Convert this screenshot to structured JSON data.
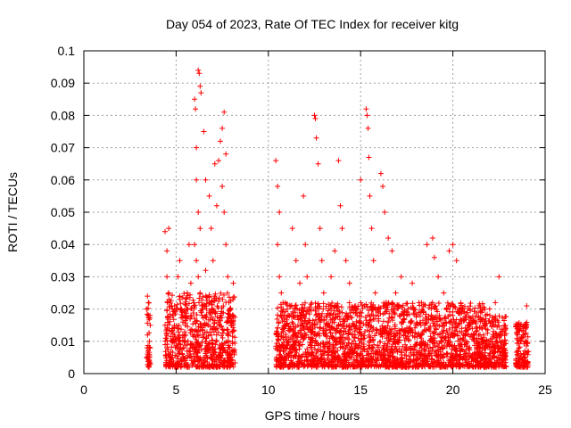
{
  "chart_data": {
    "type": "scatter",
    "title": "Day 054 of 2023, Rate Of TEC Index for receiver kitg",
    "xlabel": "GPS time / hours",
    "ylabel": "ROTI / TECUs",
    "xlim": [
      0,
      25
    ],
    "ylim": [
      0,
      0.1
    ],
    "x_ticks": [
      0,
      5,
      10,
      15,
      20,
      25
    ],
    "x_tick_labels": [
      "0",
      "5",
      "10",
      "15",
      "20",
      "25"
    ],
    "y_ticks": [
      0,
      0.01,
      0.02,
      0.03,
      0.04,
      0.05,
      0.06,
      0.07,
      0.08,
      0.09,
      0.1
    ],
    "y_tick_labels": [
      "0",
      "0.01",
      "0.02",
      "0.03",
      "0.04",
      "0.05",
      "0.06",
      "0.07",
      "0.08",
      "0.09",
      "0.1"
    ],
    "grid": true,
    "marker": "+",
    "color": "#ff0000",
    "series": [
      {
        "name": "ROTI",
        "points": [
          [
            3.4,
            0.005
          ],
          [
            3.45,
            0.012
          ],
          [
            3.5,
            0.018
          ],
          [
            3.5,
            0.022
          ],
          [
            3.55,
            0.008
          ],
          [
            3.6,
            0.015
          ],
          [
            3.6,
            0.003
          ],
          [
            3.45,
            0.024
          ],
          [
            3.55,
            0.01
          ],
          [
            3.4,
            0.02
          ],
          [
            4.4,
            0.044
          ],
          [
            4.6,
            0.045
          ],
          [
            4.5,
            0.038
          ],
          [
            4.5,
            0.03
          ],
          [
            4.6,
            0.025
          ],
          [
            4.4,
            0.015
          ],
          [
            4.5,
            0.008
          ],
          [
            4.7,
            0.005
          ],
          [
            4.8,
            0.02
          ],
          [
            4.9,
            0.012
          ],
          [
            5.0,
            0.01
          ],
          [
            5.1,
            0.03
          ],
          [
            5.2,
            0.035
          ],
          [
            5.3,
            0.02
          ],
          [
            5.4,
            0.008
          ],
          [
            5.5,
            0.015
          ],
          [
            5.6,
            0.025
          ],
          [
            5.7,
            0.04
          ],
          [
            5.8,
            0.018
          ],
          [
            5.9,
            0.012
          ],
          [
            6.0,
            0.085
          ],
          [
            6.05,
            0.082
          ],
          [
            6.1,
            0.07
          ],
          [
            6.2,
            0.094
          ],
          [
            6.25,
            0.093
          ],
          [
            6.3,
            0.089
          ],
          [
            6.35,
            0.087
          ],
          [
            6.1,
            0.06
          ],
          [
            6.2,
            0.05
          ],
          [
            6.3,
            0.045
          ],
          [
            6.0,
            0.04
          ],
          [
            6.1,
            0.035
          ],
          [
            6.2,
            0.03
          ],
          [
            6.3,
            0.025
          ],
          [
            6.4,
            0.02
          ],
          [
            6.5,
            0.015
          ],
          [
            6.6,
            0.01
          ],
          [
            6.7,
            0.005
          ],
          [
            6.5,
            0.075
          ],
          [
            6.6,
            0.06
          ],
          [
            6.8,
            0.055
          ],
          [
            6.9,
            0.045
          ],
          [
            7.0,
            0.035
          ],
          [
            7.1,
            0.065
          ],
          [
            7.2,
            0.052
          ],
          [
            7.3,
            0.066
          ],
          [
            7.4,
            0.072
          ],
          [
            7.5,
            0.076
          ],
          [
            7.6,
            0.081
          ],
          [
            7.7,
            0.068
          ],
          [
            7.5,
            0.058
          ],
          [
            7.6,
            0.05
          ],
          [
            7.7,
            0.04
          ],
          [
            7.8,
            0.03
          ],
          [
            7.9,
            0.02
          ],
          [
            8.0,
            0.015
          ],
          [
            8.1,
            0.028
          ],
          [
            7.2,
            0.01
          ],
          [
            7.4,
            0.005
          ],
          [
            7.8,
            0.012
          ],
          [
            6.0,
            0.012
          ],
          [
            6.4,
            0.018
          ],
          [
            6.8,
            0.022
          ],
          [
            7.0,
            0.008
          ],
          [
            7.3,
            0.016
          ],
          [
            5.5,
            0.004
          ],
          [
            5.8,
            0.028
          ],
          [
            6.6,
            0.032
          ],
          [
            7.1,
            0.024
          ],
          [
            7.9,
            0.006
          ],
          [
            10.4,
            0.066
          ],
          [
            10.5,
            0.058
          ],
          [
            10.6,
            0.05
          ],
          [
            10.5,
            0.04
          ],
          [
            10.6,
            0.03
          ],
          [
            10.7,
            0.025
          ],
          [
            10.8,
            0.02
          ],
          [
            10.9,
            0.015
          ],
          [
            11.0,
            0.01
          ],
          [
            11.1,
            0.005
          ],
          [
            11.3,
            0.045
          ],
          [
            11.5,
            0.035
          ],
          [
            11.7,
            0.028
          ],
          [
            11.9,
            0.055
          ],
          [
            12.0,
            0.04
          ],
          [
            12.1,
            0.03
          ],
          [
            12.2,
            0.02
          ],
          [
            12.4,
            0.01
          ],
          [
            12.5,
            0.08
          ],
          [
            12.55,
            0.079
          ],
          [
            12.6,
            0.073
          ],
          [
            12.7,
            0.065
          ],
          [
            12.8,
            0.045
          ],
          [
            12.9,
            0.035
          ],
          [
            13.0,
            0.025
          ],
          [
            13.2,
            0.015
          ],
          [
            13.4,
            0.03
          ],
          [
            13.6,
            0.038
          ],
          [
            13.8,
            0.066
          ],
          [
            13.9,
            0.052
          ],
          [
            14.0,
            0.045
          ],
          [
            14.2,
            0.035
          ],
          [
            14.4,
            0.028
          ],
          [
            14.5,
            0.02
          ],
          [
            14.7,
            0.012
          ],
          [
            14.9,
            0.008
          ],
          [
            15.0,
            0.06
          ],
          [
            15.3,
            0.082
          ],
          [
            15.35,
            0.08
          ],
          [
            15.4,
            0.076
          ],
          [
            15.45,
            0.067
          ],
          [
            15.5,
            0.055
          ],
          [
            15.6,
            0.045
          ],
          [
            15.7,
            0.035
          ],
          [
            15.8,
            0.025
          ],
          [
            16.0,
            0.02
          ],
          [
            16.1,
            0.062
          ],
          [
            16.2,
            0.058
          ],
          [
            16.3,
            0.05
          ],
          [
            16.5,
            0.042
          ],
          [
            16.7,
            0.038
          ],
          [
            16.9,
            0.025
          ],
          [
            17.2,
            0.03
          ],
          [
            17.5,
            0.018
          ],
          [
            17.8,
            0.028
          ],
          [
            18.0,
            0.015
          ],
          [
            18.3,
            0.022
          ],
          [
            18.6,
            0.04
          ],
          [
            18.9,
            0.042
          ],
          [
            19.0,
            0.036
          ],
          [
            19.2,
            0.03
          ],
          [
            19.5,
            0.025
          ],
          [
            19.8,
            0.038
          ],
          [
            20.0,
            0.04
          ],
          [
            20.2,
            0.035
          ],
          [
            20.5,
            0.02
          ],
          [
            20.8,
            0.015
          ],
          [
            21.0,
            0.012
          ],
          [
            21.3,
            0.01
          ],
          [
            21.6,
            0.008
          ],
          [
            22.0,
            0.018
          ],
          [
            22.3,
            0.022
          ],
          [
            22.5,
            0.03
          ],
          [
            22.6,
            0.012
          ],
          [
            22.8,
            0.006
          ],
          [
            23.5,
            0.015
          ],
          [
            23.7,
            0.01
          ],
          [
            23.9,
            0.005
          ],
          [
            24.0,
            0.021
          ],
          [
            23.6,
            0.003
          ],
          [
            10.8,
            0.008
          ],
          [
            11.4,
            0.012
          ],
          [
            12.0,
            0.006
          ],
          [
            12.8,
            0.018
          ],
          [
            13.5,
            0.009
          ],
          [
            14.1,
            0.014
          ],
          [
            14.8,
            0.004
          ],
          [
            15.5,
            0.016
          ],
          [
            16.4,
            0.011
          ],
          [
            17.0,
            0.007
          ],
          [
            17.6,
            0.013
          ],
          [
            18.2,
            0.009
          ],
          [
            18.8,
            0.017
          ],
          [
            19.4,
            0.006
          ],
          [
            20.1,
            0.012
          ],
          [
            20.7,
            0.01
          ],
          [
            21.2,
            0.016
          ],
          [
            21.9,
            0.009
          ],
          [
            22.2,
            0.007
          ],
          [
            23.8,
            0.012
          ]
        ]
      }
    ],
    "dense_bands": [
      {
        "x": [
          3.4,
          3.6
        ],
        "y": [
          0.002,
          0.022
        ]
      },
      {
        "x": [
          4.4,
          8.2
        ],
        "y": [
          0.002,
          0.025
        ]
      },
      {
        "x": [
          10.4,
          22.0
        ],
        "y": [
          0.002,
          0.022
        ]
      },
      {
        "x": [
          22.0,
          22.9
        ],
        "y": [
          0.002,
          0.018
        ]
      },
      {
        "x": [
          23.4,
          24.1
        ],
        "y": [
          0.002,
          0.016
        ]
      }
    ]
  }
}
